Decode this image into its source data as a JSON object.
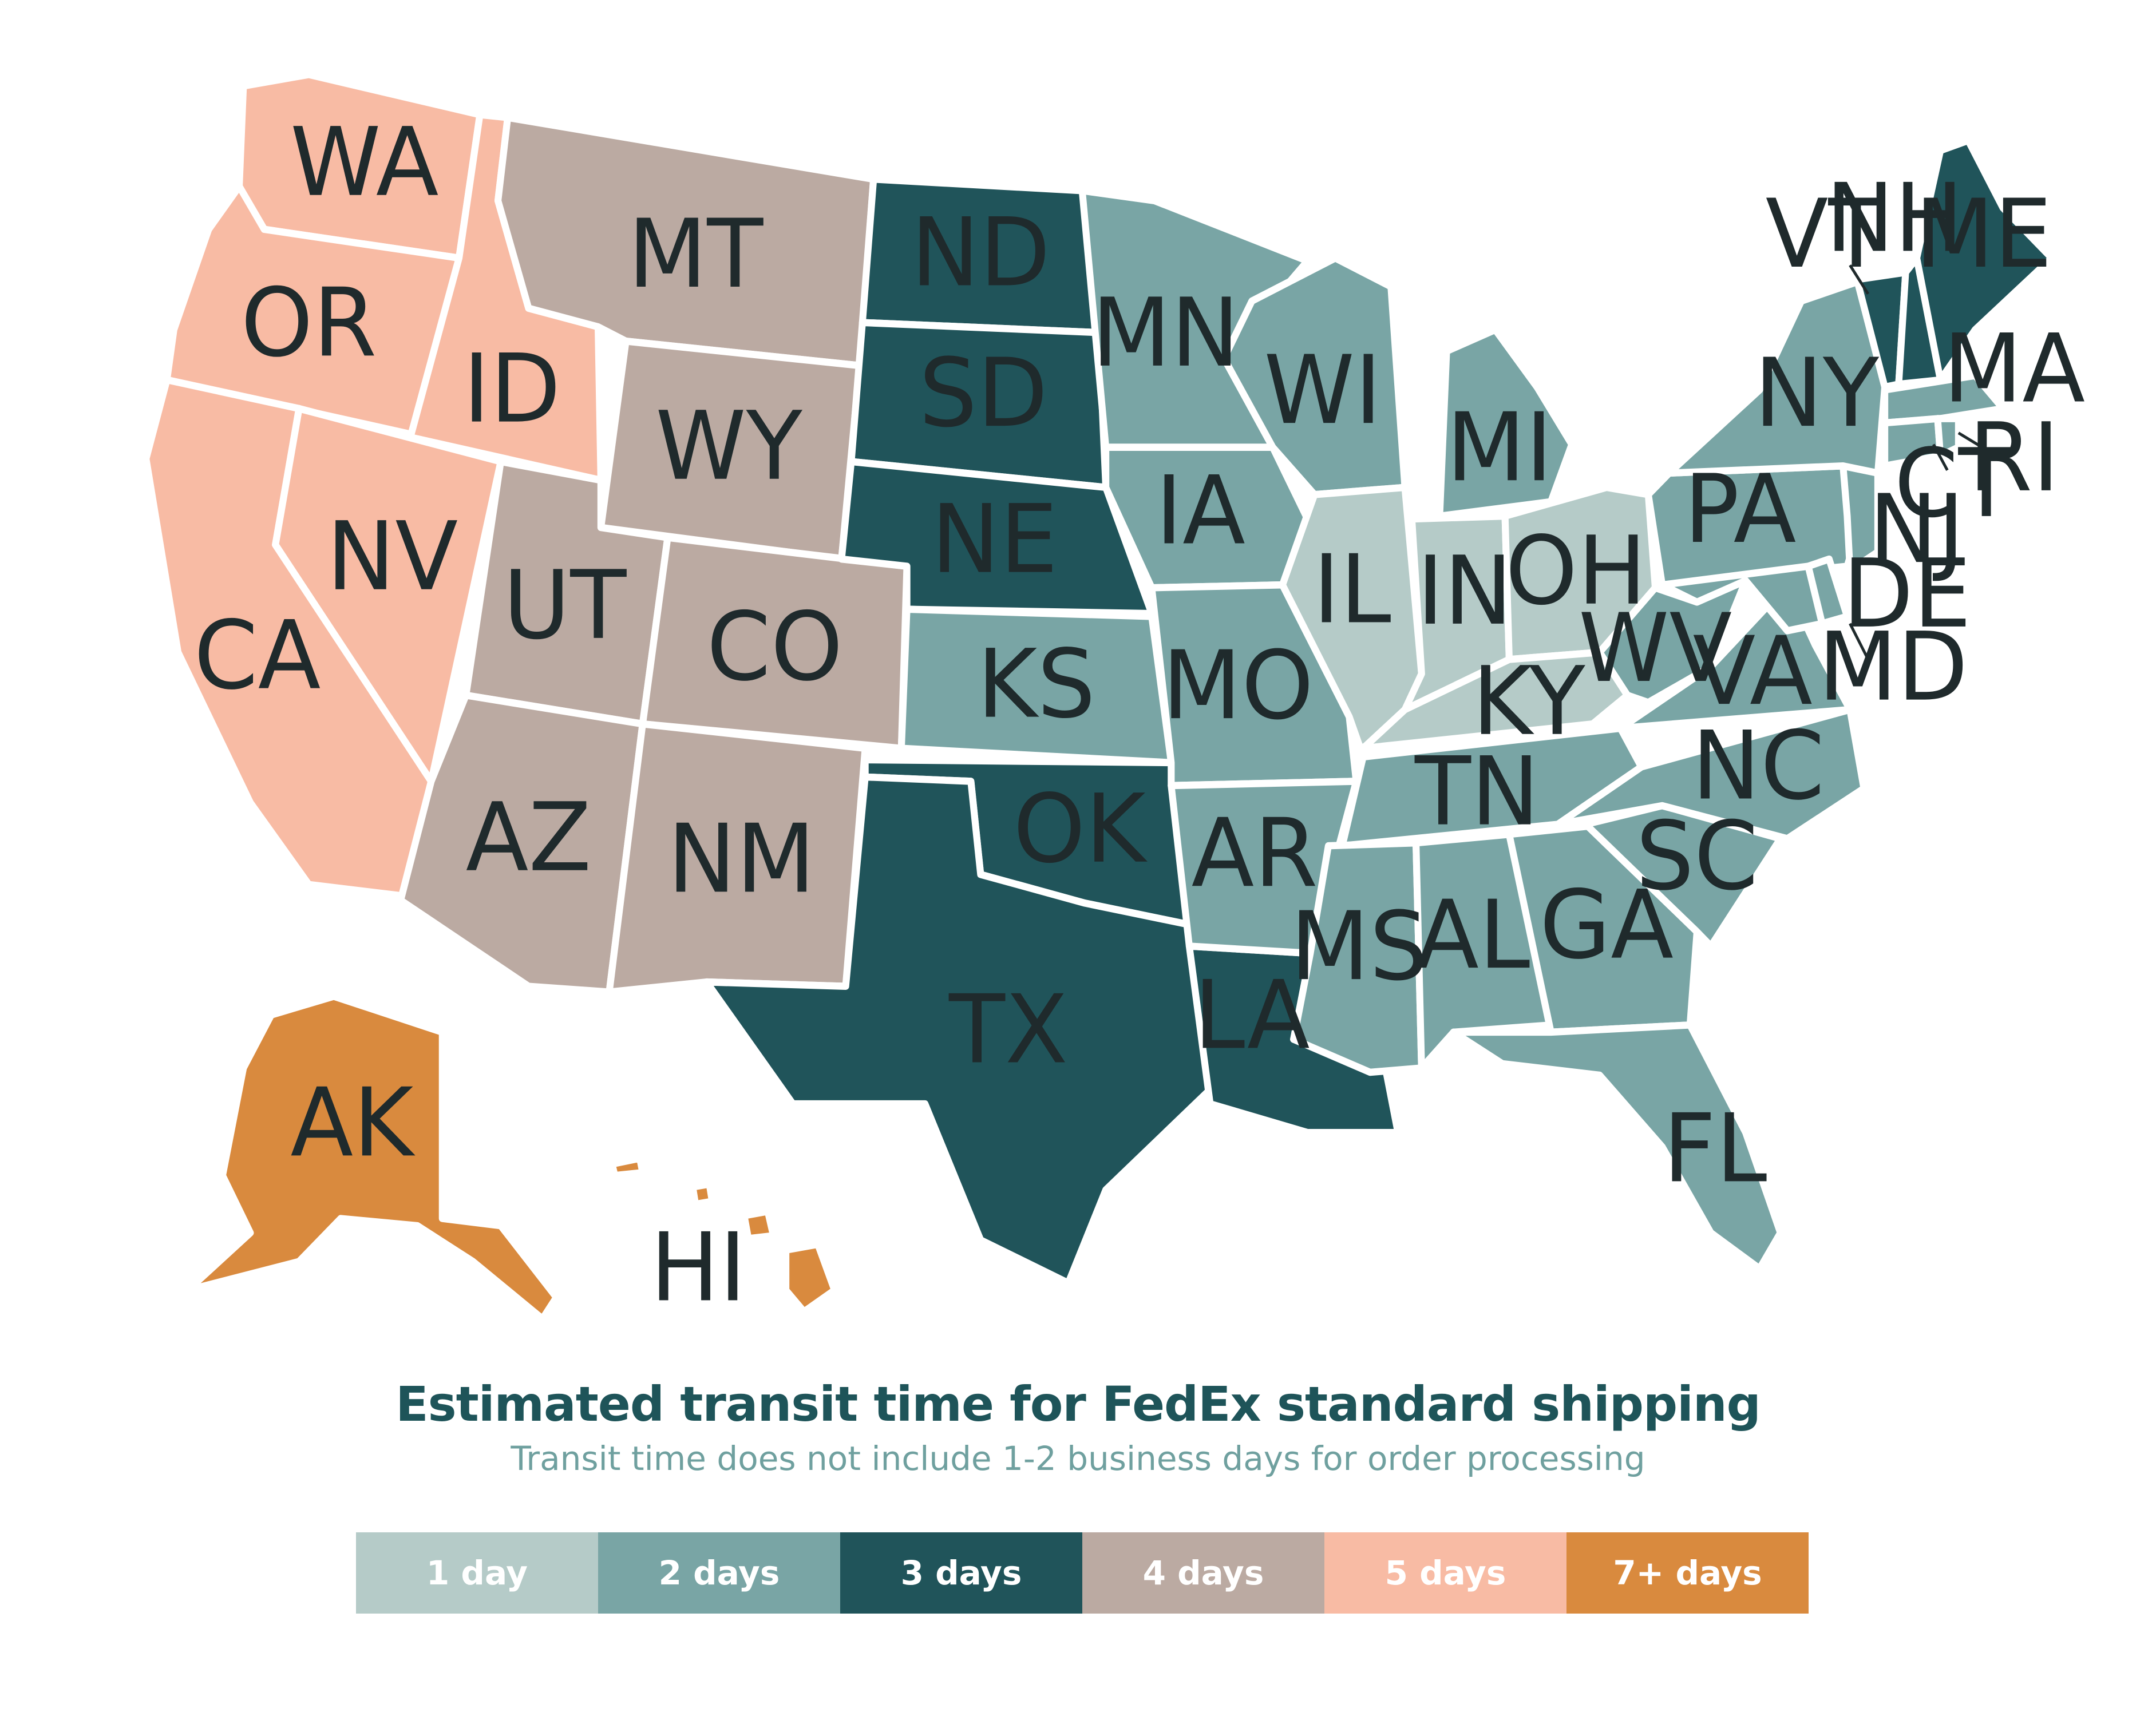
{
  "title": "Estimated transit time for FedEx standard shipping",
  "subtitle": "Transit time does not include 1-2 business days for order processing",
  "legend": [
    {
      "label": "1 day",
      "color": "#b5cbc8"
    },
    {
      "label": "2 days",
      "color": "#79a5a5"
    },
    {
      "label": "3 days",
      "color": "#20545a"
    },
    {
      "label": "4 days",
      "color": "#bbaaa2"
    },
    {
      "label": "5 days",
      "color": "#f8bba4"
    },
    {
      "label": "7+ days",
      "color": "#d98a3e"
    }
  ],
  "states": [
    {
      "code": "WA",
      "tier": "5 days"
    },
    {
      "code": "OR",
      "tier": "5 days"
    },
    {
      "code": "CA",
      "tier": "5 days"
    },
    {
      "code": "NV",
      "tier": "5 days"
    },
    {
      "code": "ID",
      "tier": "5 days"
    },
    {
      "code": "MT",
      "tier": "4 days"
    },
    {
      "code": "WY",
      "tier": "4 days"
    },
    {
      "code": "UT",
      "tier": "4 days"
    },
    {
      "code": "CO",
      "tier": "4 days"
    },
    {
      "code": "AZ",
      "tier": "4 days"
    },
    {
      "code": "NM",
      "tier": "4 days"
    },
    {
      "code": "ND",
      "tier": "3 days"
    },
    {
      "code": "SD",
      "tier": "3 days"
    },
    {
      "code": "NE",
      "tier": "3 days"
    },
    {
      "code": "OK",
      "tier": "3 days"
    },
    {
      "code": "TX",
      "tier": "3 days"
    },
    {
      "code": "LA",
      "tier": "3 days"
    },
    {
      "code": "VT",
      "tier": "3 days"
    },
    {
      "code": "NH",
      "tier": "3 days"
    },
    {
      "code": "ME",
      "tier": "3 days"
    },
    {
      "code": "KS",
      "tier": "2 days"
    },
    {
      "code": "MN",
      "tier": "2 days"
    },
    {
      "code": "IA",
      "tier": "2 days"
    },
    {
      "code": "MO",
      "tier": "2 days"
    },
    {
      "code": "AR",
      "tier": "2 days"
    },
    {
      "code": "WI",
      "tier": "2 days"
    },
    {
      "code": "MI",
      "tier": "2 days"
    },
    {
      "code": "MS",
      "tier": "2 days"
    },
    {
      "code": "AL",
      "tier": "2 days"
    },
    {
      "code": "TN",
      "tier": "2 days"
    },
    {
      "code": "GA",
      "tier": "2 days"
    },
    {
      "code": "FL",
      "tier": "2 days"
    },
    {
      "code": "SC",
      "tier": "2 days"
    },
    {
      "code": "NC",
      "tier": "2 days"
    },
    {
      "code": "VA",
      "tier": "2 days"
    },
    {
      "code": "WV",
      "tier": "2 days"
    },
    {
      "code": "PA",
      "tier": "2 days"
    },
    {
      "code": "NY",
      "tier": "2 days"
    },
    {
      "code": "NJ",
      "tier": "2 days"
    },
    {
      "code": "DE",
      "tier": "2 days"
    },
    {
      "code": "MD",
      "tier": "2 days"
    },
    {
      "code": "CT",
      "tier": "2 days"
    },
    {
      "code": "RI",
      "tier": "2 days"
    },
    {
      "code": "MA",
      "tier": "2 days"
    },
    {
      "code": "IL",
      "tier": "1 day"
    },
    {
      "code": "IN",
      "tier": "1 day"
    },
    {
      "code": "OH",
      "tier": "1 day"
    },
    {
      "code": "KY",
      "tier": "1 day"
    },
    {
      "code": "AK",
      "tier": "7+ days"
    },
    {
      "code": "HI",
      "tier": "7+ days"
    }
  ]
}
